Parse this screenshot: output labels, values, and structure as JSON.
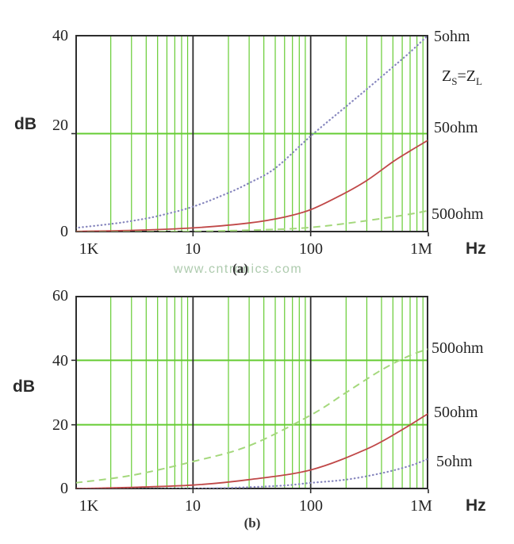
{
  "watermark": "www.cntronics.com",
  "colors": {
    "grid": "#66cc33",
    "frame": "#2d2d2d",
    "text": "#242424",
    "watermark": "#aecbae",
    "series_blue": "#8585bd",
    "series_red": "#c04848",
    "series_green": "#a4d87c"
  },
  "chart_data": [
    {
      "id": "a",
      "type": "line",
      "caption": "(a)",
      "ylabel": "dB",
      "x_unit": "Hz",
      "x_scale": "log",
      "xlim": [
        1000,
        1000000
      ],
      "ylim": [
        0,
        40
      ],
      "x_ticks": [
        {
          "v": 1000,
          "label": "1K"
        },
        {
          "v": 10000,
          "label": "10"
        },
        {
          "v": 100000,
          "label": "100"
        },
        {
          "v": 1000000,
          "label": "1M"
        }
      ],
      "y_ticks": [
        {
          "v": 40,
          "label": "40"
        },
        {
          "v": 20,
          "label": "20"
        },
        {
          "v": 0,
          "label": "0"
        }
      ],
      "y_gridlines": [
        20
      ],
      "x_decade_lines": [
        10000,
        100000
      ],
      "grid": "log-minor-2-9",
      "annotation": {
        "z1": "Z",
        "s1": "S",
        "eq": "=Z",
        "s2": "L"
      },
      "right_labels": [
        "5ohm",
        "50ohm",
        "500ohm"
      ],
      "series": [
        {
          "name": "5ohm",
          "style": "dotted",
          "color": "#8585bd",
          "points": [
            [
              1000,
              0.9
            ],
            [
              2000,
              1.7
            ],
            [
              3000,
              2.3
            ],
            [
              5000,
              3.3
            ],
            [
              10000,
              5.2
            ],
            [
              20000,
              8
            ],
            [
              30000,
              10
            ],
            [
              50000,
              13
            ],
            [
              100000,
              19.5
            ],
            [
              200000,
              25.5
            ],
            [
              300000,
              29
            ],
            [
              500000,
              33.5
            ],
            [
              700000,
              36.5
            ],
            [
              1000000,
              40
            ]
          ]
        },
        {
          "name": "50ohm",
          "style": "solid",
          "color": "#c04848",
          "points": [
            [
              1000,
              0.2
            ],
            [
              3000,
              0.4
            ],
            [
              10000,
              0.9
            ],
            [
              30000,
              1.9
            ],
            [
              60000,
              3.1
            ],
            [
              100000,
              4.6
            ],
            [
              180000,
              7.5
            ],
            [
              300000,
              10.5
            ],
            [
              500000,
              14.3
            ],
            [
              700000,
              16.5
            ],
            [
              1000000,
              18.7
            ]
          ]
        },
        {
          "name": "500ohm",
          "style": "dashed",
          "color": "#a4d87c",
          "points": [
            [
              1000,
              0.05
            ],
            [
              10000,
              0.2
            ],
            [
              50000,
              0.6
            ],
            [
              100000,
              1
            ],
            [
              200000,
              1.8
            ],
            [
              400000,
              2.8
            ],
            [
              700000,
              3.7
            ],
            [
              1000000,
              4.4
            ]
          ]
        }
      ]
    },
    {
      "id": "b",
      "type": "line",
      "caption": "(b)",
      "ylabel": "dB",
      "x_unit": "Hz",
      "x_scale": "log",
      "xlim": [
        1000,
        1000000
      ],
      "ylim": [
        0,
        60
      ],
      "x_ticks": [
        {
          "v": 1000,
          "label": "1K"
        },
        {
          "v": 10000,
          "label": "10"
        },
        {
          "v": 100000,
          "label": "100"
        },
        {
          "v": 1000000,
          "label": "1M"
        }
      ],
      "y_ticks": [
        {
          "v": 60,
          "label": "60"
        },
        {
          "v": 40,
          "label": "40"
        },
        {
          "v": 20,
          "label": "20"
        },
        {
          "v": 0,
          "label": "0"
        }
      ],
      "y_gridlines": [
        20,
        40
      ],
      "x_decade_lines": [
        10000,
        100000
      ],
      "grid": "log-minor-2-9",
      "right_labels": [
        "500ohm",
        "50ohm",
        "5ohm"
      ],
      "series": [
        {
          "name": "500ohm",
          "style": "dashed",
          "color": "#a4d87c",
          "points": [
            [
              1000,
              2
            ],
            [
              3000,
              4.3
            ],
            [
              10000,
              8.6
            ],
            [
              30000,
              13.5
            ],
            [
              100000,
              23
            ],
            [
              200000,
              30
            ],
            [
              400000,
              37
            ],
            [
              700000,
              41.5
            ],
            [
              1000000,
              43.5
            ]
          ]
        },
        {
          "name": "50ohm",
          "style": "solid",
          "color": "#c04848",
          "points": [
            [
              1000,
              0.2
            ],
            [
              3000,
              0.6
            ],
            [
              10000,
              1.3
            ],
            [
              30000,
              3
            ],
            [
              100000,
              6
            ],
            [
              300000,
              12.5
            ],
            [
              600000,
              18.5
            ],
            [
              1000000,
              23.5
            ]
          ]
        },
        {
          "name": "5ohm",
          "style": "dotted",
          "color": "#8585bd",
          "points": [
            [
              1000,
              0.05
            ],
            [
              10000,
              0.2
            ],
            [
              50000,
              1
            ],
            [
              100000,
              2
            ],
            [
              200000,
              3
            ],
            [
              400000,
              5
            ],
            [
              700000,
              7.3
            ],
            [
              1000000,
              9.5
            ]
          ]
        }
      ]
    }
  ]
}
